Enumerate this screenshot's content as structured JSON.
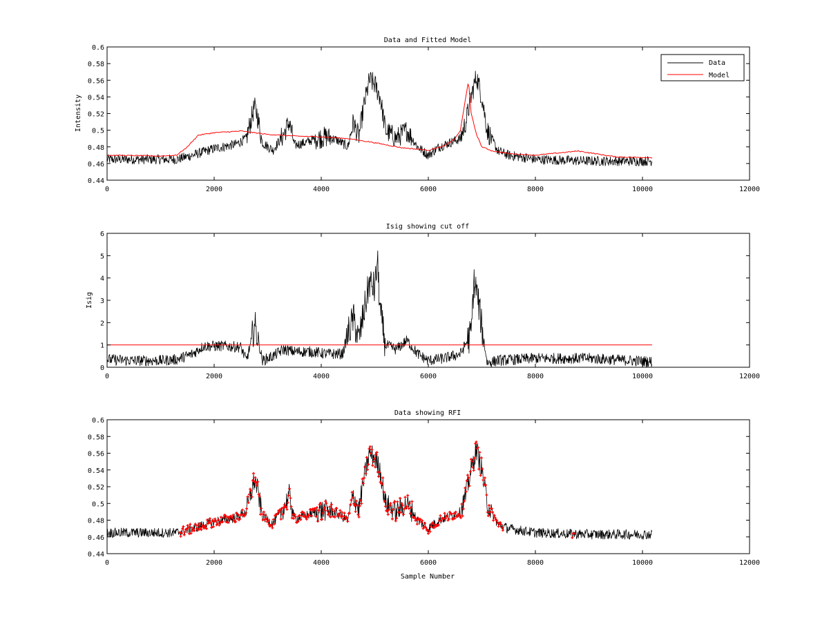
{
  "chart_data": [
    {
      "type": "line",
      "title": "Data and Fitted Model",
      "xlabel": "",
      "ylabel": "Intensity",
      "xlim": [
        0,
        12000
      ],
      "ylim": [
        0.44,
        0.6
      ],
      "xticks": [
        "0",
        "2000",
        "4000",
        "6000",
        "8000",
        "10000",
        "12000"
      ],
      "yticks": [
        "0.44",
        "0.46",
        "0.48",
        "0.5",
        "0.52",
        "0.54",
        "0.56",
        "0.58",
        "0.6"
      ],
      "legend_position": "top-right",
      "series": [
        {
          "name": "Data",
          "color": "#000000",
          "style": "line",
          "noise": 0.006,
          "x": [
            0,
            500,
            1000,
            1300,
            1600,
            2000,
            2400,
            2600,
            2700,
            2750,
            2800,
            2900,
            3100,
            3300,
            3400,
            3500,
            3700,
            3900,
            4100,
            4300,
            4500,
            4600,
            4700,
            4800,
            4900,
            5000,
            5100,
            5200,
            5400,
            5600,
            5800,
            6000,
            6200,
            6400,
            6600,
            6700,
            6800,
            6900,
            7000,
            7100,
            7300,
            7500,
            8000,
            9000,
            10180
          ],
          "y": [
            0.465,
            0.465,
            0.465,
            0.465,
            0.47,
            0.478,
            0.483,
            0.49,
            0.515,
            0.528,
            0.52,
            0.485,
            0.476,
            0.495,
            0.51,
            0.482,
            0.485,
            0.49,
            0.492,
            0.488,
            0.48,
            0.51,
            0.492,
            0.53,
            0.56,
            0.555,
            0.54,
            0.5,
            0.49,
            0.5,
            0.48,
            0.47,
            0.48,
            0.485,
            0.49,
            0.51,
            0.54,
            0.565,
            0.54,
            0.5,
            0.475,
            0.47,
            0.465,
            0.463,
            0.463
          ]
        },
        {
          "name": "Model",
          "color": "#ff0000",
          "style": "line",
          "x": [
            0,
            1000,
            1300,
            1500,
            1700,
            2000,
            2500,
            3000,
            3500,
            4000,
            4500,
            5000,
            5500,
            6000,
            6300,
            6500,
            6600,
            6650,
            6700,
            6750,
            6800,
            6900,
            7000,
            7200,
            7500,
            8000,
            8800,
            9500,
            10180
          ],
          "y": [
            0.47,
            0.469,
            0.47,
            0.48,
            0.494,
            0.497,
            0.499,
            0.495,
            0.493,
            0.492,
            0.49,
            0.485,
            0.479,
            0.476,
            0.481,
            0.49,
            0.5,
            0.52,
            0.54,
            0.56,
            0.52,
            0.495,
            0.48,
            0.475,
            0.472,
            0.47,
            0.475,
            0.468,
            0.467
          ]
        }
      ]
    },
    {
      "type": "line",
      "title": "Isig showing cut off",
      "xlabel": "",
      "ylabel": "Isig",
      "xlim": [
        0,
        12000
      ],
      "ylim": [
        0,
        6
      ],
      "xticks": [
        "0",
        "2000",
        "4000",
        "6000",
        "8000",
        "10000",
        "12000"
      ],
      "yticks": [
        "0",
        "1",
        "2",
        "3",
        "4",
        "5",
        "6"
      ],
      "threshold": 1,
      "threshold_color": "#ff0000",
      "series": [
        {
          "color": "#000000",
          "style": "line",
          "noise": 0.25,
          "floor": 0,
          "x": [
            0,
            500,
            1000,
            1300,
            1600,
            1800,
            2200,
            2500,
            2600,
            2700,
            2750,
            2800,
            2900,
            3100,
            3300,
            3500,
            3800,
            4100,
            4400,
            4500,
            4600,
            4700,
            4800,
            4900,
            5000,
            5050,
            5100,
            5200,
            5400,
            5600,
            5800,
            6000,
            6300,
            6600,
            6800,
            6850,
            6900,
            7000,
            7100,
            7300,
            8000,
            9000,
            10180
          ],
          "y": [
            0.35,
            0.3,
            0.3,
            0.35,
            0.6,
            0.95,
            0.95,
            0.9,
            0.3,
            1.2,
            1.9,
            1.5,
            0.3,
            0.5,
            0.8,
            0.7,
            0.7,
            0.6,
            0.6,
            1.5,
            2.2,
            1.2,
            2.5,
            3.8,
            3.5,
            4.8,
            2.5,
            1.0,
            0.8,
            1.2,
            0.6,
            0.3,
            0.4,
            0.6,
            1.5,
            3.8,
            3.5,
            1.8,
            0.2,
            0.3,
            0.4,
            0.4,
            0.25
          ]
        }
      ]
    },
    {
      "type": "scatter",
      "title": "Data showing RFI",
      "xlabel": "Sample Number",
      "ylabel": "",
      "xlim": [
        0,
        12000
      ],
      "ylim": [
        0.44,
        0.6
      ],
      "xticks": [
        "0",
        "2000",
        "4000",
        "6000",
        "8000",
        "10000",
        "12000"
      ],
      "yticks": [
        "0.44",
        "0.46",
        "0.48",
        "0.5",
        "0.52",
        "0.54",
        "0.56",
        "0.58",
        "0.6"
      ],
      "flagged_ranges": [
        [
          1350,
          7400
        ],
        [
          8680,
          8730
        ]
      ],
      "series": [
        {
          "color": "#000000",
          "style": "line",
          "noise": 0.006,
          "x": [
            0,
            500,
            1000,
            1300,
            1600,
            2000,
            2400,
            2600,
            2700,
            2750,
            2800,
            2900,
            3100,
            3300,
            3400,
            3500,
            3700,
            3900,
            4100,
            4300,
            4500,
            4600,
            4700,
            4800,
            4900,
            5000,
            5100,
            5200,
            5400,
            5600,
            5800,
            6000,
            6200,
            6400,
            6600,
            6700,
            6800,
            6900,
            7000,
            7100,
            7300,
            7500,
            8000,
            9000,
            10180
          ],
          "y": [
            0.465,
            0.465,
            0.465,
            0.465,
            0.47,
            0.478,
            0.483,
            0.49,
            0.515,
            0.528,
            0.52,
            0.485,
            0.476,
            0.495,
            0.51,
            0.482,
            0.485,
            0.49,
            0.492,
            0.488,
            0.48,
            0.51,
            0.492,
            0.53,
            0.56,
            0.555,
            0.54,
            0.5,
            0.49,
            0.5,
            0.48,
            0.47,
            0.48,
            0.485,
            0.49,
            0.51,
            0.54,
            0.565,
            0.54,
            0.5,
            0.475,
            0.47,
            0.465,
            0.463,
            0.463
          ]
        },
        {
          "color": "#ff0000",
          "style": "markers",
          "marker": "+"
        }
      ]
    }
  ]
}
